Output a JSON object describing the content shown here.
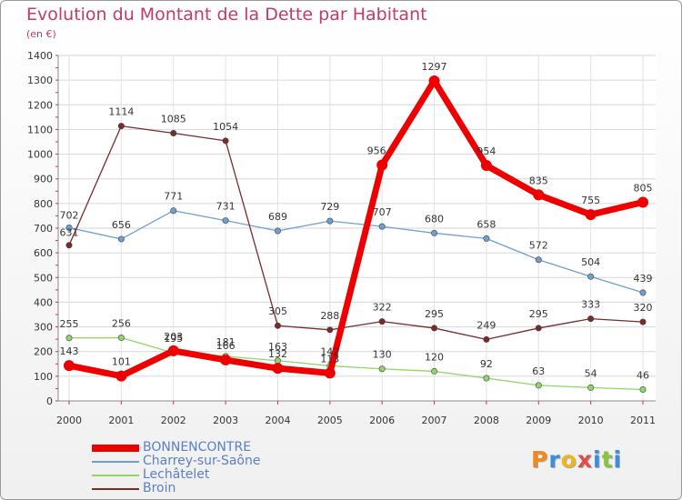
{
  "title": "Evolution du Montant de la Dette par Habitant",
  "unit_label": "(en €)",
  "logo_text": "Proxiti",
  "chart_data": {
    "type": "line",
    "title": "Evolution du Montant de la Dette par Habitant",
    "ylabel": "(en €)",
    "ylim": [
      0,
      1400
    ],
    "yticks": [
      0,
      100,
      200,
      300,
      400,
      500,
      600,
      700,
      800,
      900,
      1000,
      1100,
      1200,
      1300,
      1400
    ],
    "ytick_labels": [
      "0",
      "100",
      "200",
      "300",
      "400",
      "500",
      "600",
      "700",
      "800",
      "900",
      "1000",
      "1100",
      "1200",
      "1300",
      "1400"
    ],
    "categories": [
      "2000",
      "2001",
      "2002",
      "2003",
      "2004",
      "2005",
      "2006",
      "2007",
      "2008",
      "2009",
      "2010",
      "2011"
    ],
    "grid": true,
    "legend_position": "bottom-left",
    "series": [
      {
        "name": "BONNENCONTRE",
        "color": "#ee0000",
        "values": [
          143,
          101,
          203,
          166,
          132,
          113,
          956,
          1297,
          954,
          835,
          755,
          805
        ],
        "labels": [
          "143",
          "101",
          "203",
          "166",
          "132",
          "113",
          "956",
          "1297",
          "954",
          "835",
          "755",
          "805"
        ]
      },
      {
        "name": "Charrey-sur-Saône",
        "color": "#6e9fd0",
        "values": [
          702,
          656,
          771,
          731,
          689,
          729,
          707,
          680,
          658,
          572,
          504,
          439
        ],
        "labels": [
          "702",
          "656",
          "771",
          "731",
          "689",
          "729",
          "707",
          "680",
          "658",
          "572",
          "504",
          "439"
        ]
      },
      {
        "name": "Lechâtelet",
        "color": "#8ed66a",
        "values": [
          255,
          256,
          195,
          181,
          163,
          142,
          130,
          120,
          92,
          63,
          54,
          46
        ],
        "labels": [
          "255",
          "256",
          "195",
          "181",
          "163",
          "142",
          "130",
          "120",
          "92",
          "63",
          "54",
          "46"
        ]
      },
      {
        "name": "Broin",
        "color": "#7a2a2a",
        "values": [
          631,
          1114,
          1085,
          1054,
          305,
          288,
          322,
          295,
          249,
          295,
          333,
          320
        ],
        "labels": [
          "631",
          "1114",
          "1085",
          "1054",
          "305",
          "288",
          "322",
          "295",
          "249",
          "295",
          "333",
          "320"
        ]
      }
    ]
  }
}
